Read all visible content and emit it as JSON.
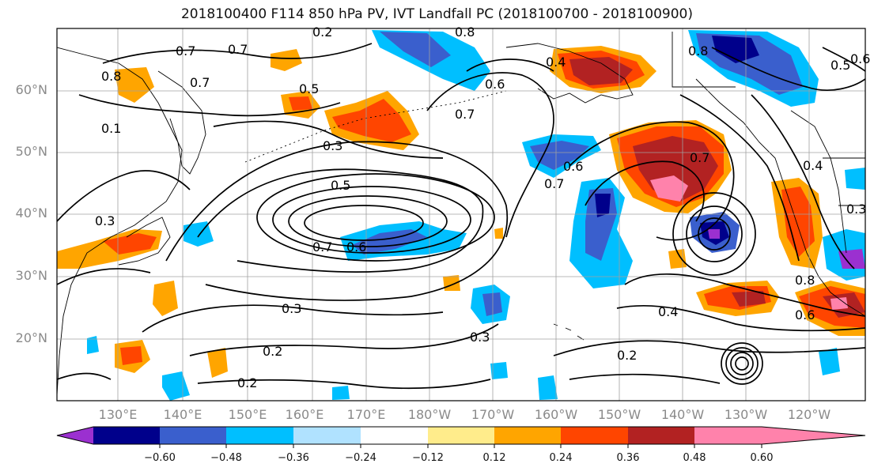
{
  "title": "2018100400 F114 850 hPa PV, IVT Landfall PC (2018100700 - 2018100900)",
  "lat_labels": [
    "60°N",
    "50°N",
    "40°N",
    "30°N",
    "20°N"
  ],
  "lon_labels": [
    "130°E",
    "140°E",
    "150°E",
    "160°E",
    "170°E",
    "180°W",
    "170°W",
    "160°W",
    "150°W",
    "140°W",
    "130°W",
    "120°W"
  ],
  "colorbar": {
    "ticks": [
      "−0.60",
      "−0.48",
      "−0.36",
      "−0.24",
      "−0.12",
      "0.12",
      "0.24",
      "0.36",
      "0.48",
      "0.60"
    ],
    "colors": [
      "#9b30d0",
      "#00008b",
      "#3a5fcd",
      "#00bfff",
      "#b0e2ff",
      "#ffffff",
      "#ffec8b",
      "#ffa500",
      "#ff4500",
      "#b22222",
      "#ff82ab"
    ]
  },
  "contour_labels": [
    "0.8",
    "0.7",
    "0.7",
    "0.5",
    "0.3",
    "0.6",
    "0.7",
    "0.4",
    "0.8",
    "0.2",
    "0.5",
    "0.6",
    "0.7",
    "0.6",
    "0.5",
    "0.8",
    "0.7",
    "0.6",
    "0.3",
    "0.3",
    "0.2",
    "0.2",
    "0.3",
    "0.2",
    "0.4",
    "0.8",
    "0.6",
    "0.7",
    "0.4",
    "0.3",
    "0.1",
    "0.7"
  ],
  "colors": {
    "blue_shade": "#3a5fcd",
    "cyan_shade": "#00bfff",
    "navy_shade": "#00008b",
    "purple_shade": "#9b30d0",
    "orange_shade": "#ffa500",
    "redorange_shade": "#ff4500",
    "darkred_shade": "#b22222",
    "pink_shade": "#ff82ab",
    "yellow_shade": "#ffec8b",
    "contour": "#000000",
    "grid": "#a0a0a0"
  }
}
